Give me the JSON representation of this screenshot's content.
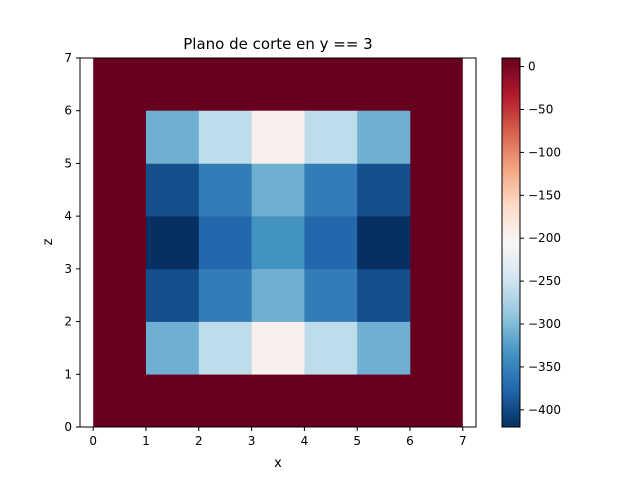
{
  "chart_data": {
    "type": "heatmap",
    "title": "Plano de corte en y == 3",
    "xlabel": "x",
    "ylabel": "z",
    "xlim": [
      -0.25,
      7.25
    ],
    "ylim": [
      0,
      7
    ],
    "xticks": [
      0,
      1,
      2,
      3,
      4,
      5,
      6,
      7
    ],
    "yticks": [
      0,
      1,
      2,
      3,
      4,
      5,
      6,
      7
    ],
    "grid": false,
    "colormap": "RdBu_r",
    "vmin": -420,
    "vmax": 10,
    "colorbar_ticks": [
      0,
      -50,
      -100,
      -150,
      -200,
      -250,
      -300,
      -350,
      -400
    ],
    "background": {
      "x": [
        0,
        7
      ],
      "z": [
        0,
        7
      ],
      "value": 10
    },
    "cells": [
      {
        "x": [
          1,
          2
        ],
        "z": [
          1,
          2
        ],
        "value": -310
      },
      {
        "x": [
          2,
          3
        ],
        "z": [
          1,
          2
        ],
        "value": -260
      },
      {
        "x": [
          3,
          4
        ],
        "z": [
          1,
          2
        ],
        "value": -195
      },
      {
        "x": [
          4,
          5
        ],
        "z": [
          1,
          2
        ],
        "value": -260
      },
      {
        "x": [
          5,
          6
        ],
        "z": [
          1,
          2
        ],
        "value": -310
      },
      {
        "x": [
          1,
          2
        ],
        "z": [
          2,
          3
        ],
        "value": -395
      },
      {
        "x": [
          2,
          3
        ],
        "z": [
          2,
          3
        ],
        "value": -355
      },
      {
        "x": [
          3,
          4
        ],
        "z": [
          2,
          3
        ],
        "value": -310
      },
      {
        "x": [
          4,
          5
        ],
        "z": [
          2,
          3
        ],
        "value": -355
      },
      {
        "x": [
          5,
          6
        ],
        "z": [
          2,
          3
        ],
        "value": -395
      },
      {
        "x": [
          1,
          2
        ],
        "z": [
          3,
          4
        ],
        "value": -420
      },
      {
        "x": [
          2,
          3
        ],
        "z": [
          3,
          4
        ],
        "value": -375
      },
      {
        "x": [
          3,
          4
        ],
        "z": [
          3,
          4
        ],
        "value": -335
      },
      {
        "x": [
          4,
          5
        ],
        "z": [
          3,
          4
        ],
        "value": -375
      },
      {
        "x": [
          5,
          6
        ],
        "z": [
          3,
          4
        ],
        "value": -420
      },
      {
        "x": [
          1,
          2
        ],
        "z": [
          4,
          5
        ],
        "value": -395
      },
      {
        "x": [
          2,
          3
        ],
        "z": [
          4,
          5
        ],
        "value": -355
      },
      {
        "x": [
          3,
          4
        ],
        "z": [
          4,
          5
        ],
        "value": -310
      },
      {
        "x": [
          4,
          5
        ],
        "z": [
          4,
          5
        ],
        "value": -355
      },
      {
        "x": [
          5,
          6
        ],
        "z": [
          4,
          5
        ],
        "value": -395
      },
      {
        "x": [
          1,
          2
        ],
        "z": [
          5,
          6
        ],
        "value": -310
      },
      {
        "x": [
          2,
          3
        ],
        "z": [
          5,
          6
        ],
        "value": -260
      },
      {
        "x": [
          3,
          4
        ],
        "z": [
          5,
          6
        ],
        "value": -195
      },
      {
        "x": [
          4,
          5
        ],
        "z": [
          5,
          6
        ],
        "value": -260
      },
      {
        "x": [
          5,
          6
        ],
        "z": [
          5,
          6
        ],
        "value": -310
      }
    ]
  }
}
